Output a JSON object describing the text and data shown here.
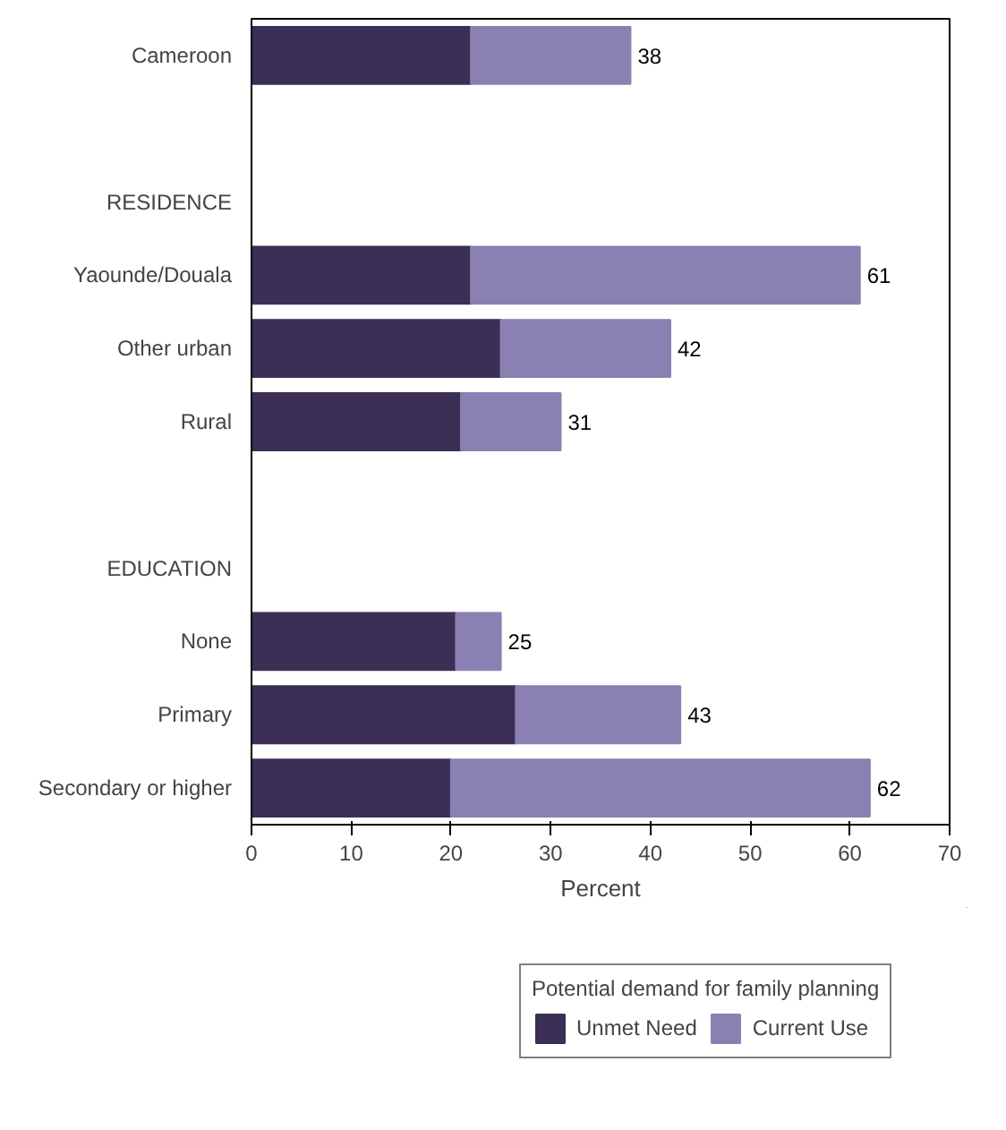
{
  "chart_data": {
    "type": "bar",
    "orientation": "horizontal",
    "stacked": true,
    "xlabel": "Percent",
    "legend_title": "Potential demand for family planning",
    "legend": "bottom",
    "grid": false,
    "categories": [
      "Cameroon",
      null,
      "RESIDENCE",
      "Yaounde/Douala",
      "Other urban",
      "Rural",
      null,
      "EDUCATION",
      "None",
      "Primary",
      "Secondary or higher"
    ],
    "series": [
      {
        "name": "Unmet Need",
        "color": "#3b2f55",
        "values": [
          22,
          null,
          null,
          22,
          25,
          21,
          null,
          null,
          20.5,
          26.5,
          20
        ]
      },
      {
        "name": "Current Use",
        "color": "#8a80b2",
        "values": [
          16,
          null,
          null,
          39,
          17,
          10,
          null,
          null,
          4.5,
          16.5,
          42
        ]
      }
    ],
    "totals": [
      "38",
      null,
      null,
      "61",
      "42",
      "31",
      null,
      null,
      "25",
      "43",
      "62"
    ],
    "xlim": [
      0,
      70
    ],
    "xticks": [
      0,
      10,
      20,
      30,
      40,
      50,
      60,
      70
    ]
  }
}
